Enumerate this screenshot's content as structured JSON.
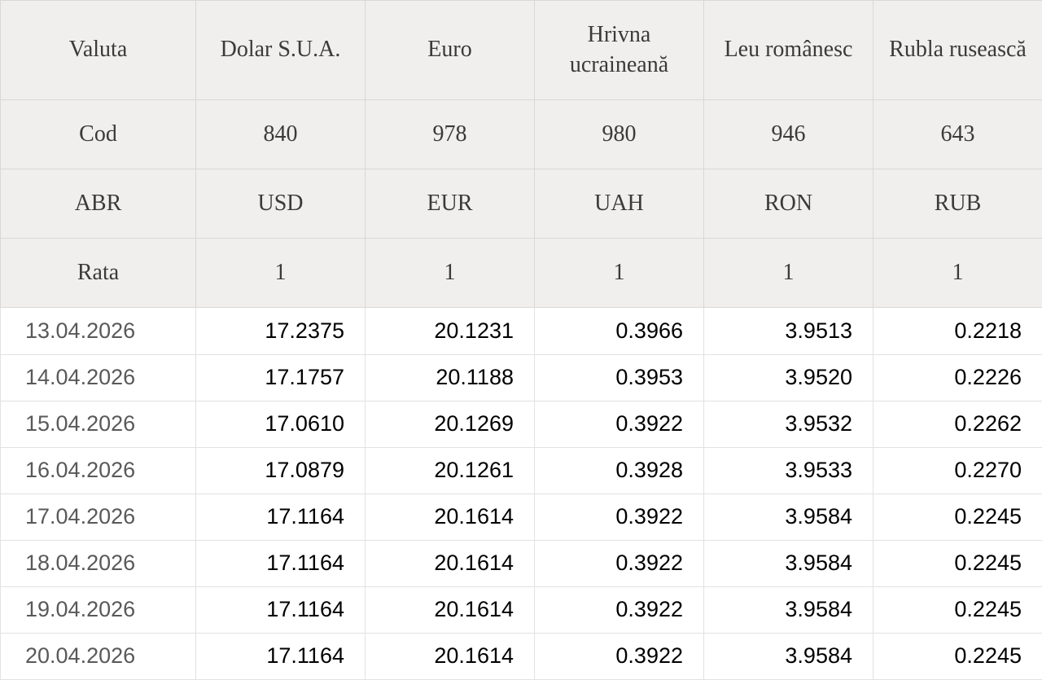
{
  "colors": {
    "header_bg": "#f0efed",
    "header_border": "#d9d8d5",
    "data_border": "#e3e2e0",
    "header_text": "#3b3a38",
    "date_text": "#595959",
    "value_text": "#000000",
    "data_bg": "#ffffff"
  },
  "table": {
    "meta_rows": [
      {
        "key": "valuta",
        "label": "Valuta",
        "values": [
          "Dolar S.U.A.",
          "Euro",
          "Hrivna ucraineană",
          "Leu românesc",
          "Rubla rusească"
        ]
      },
      {
        "key": "cod",
        "label": "Cod",
        "values": [
          "840",
          "978",
          "980",
          "946",
          "643"
        ]
      },
      {
        "key": "abr",
        "label": "ABR",
        "values": [
          "USD",
          "EUR",
          "UAH",
          "RON",
          "RUB"
        ]
      },
      {
        "key": "rata",
        "label": "Rata",
        "values": [
          "1",
          "1",
          "1",
          "1",
          "1"
        ]
      }
    ],
    "rate_rows": [
      {
        "date": "13.04.2026",
        "values": [
          "17.2375",
          "20.1231",
          "0.3966",
          "3.9513",
          "0.2218"
        ]
      },
      {
        "date": "14.04.2026",
        "values": [
          "17.1757",
          "20.1188",
          "0.3953",
          "3.9520",
          "0.2226"
        ]
      },
      {
        "date": "15.04.2026",
        "values": [
          "17.0610",
          "20.1269",
          "0.3922",
          "3.9532",
          "0.2262"
        ]
      },
      {
        "date": "16.04.2026",
        "values": [
          "17.0879",
          "20.1261",
          "0.3928",
          "3.9533",
          "0.2270"
        ]
      },
      {
        "date": "17.04.2026",
        "values": [
          "17.1164",
          "20.1614",
          "0.3922",
          "3.9584",
          "0.2245"
        ]
      },
      {
        "date": "18.04.2026",
        "values": [
          "17.1164",
          "20.1614",
          "0.3922",
          "3.9584",
          "0.2245"
        ]
      },
      {
        "date": "19.04.2026",
        "values": [
          "17.1164",
          "20.1614",
          "0.3922",
          "3.9584",
          "0.2245"
        ]
      },
      {
        "date": "20.04.2026",
        "values": [
          "17.1164",
          "20.1614",
          "0.3922",
          "3.9584",
          "0.2245"
        ]
      }
    ]
  }
}
